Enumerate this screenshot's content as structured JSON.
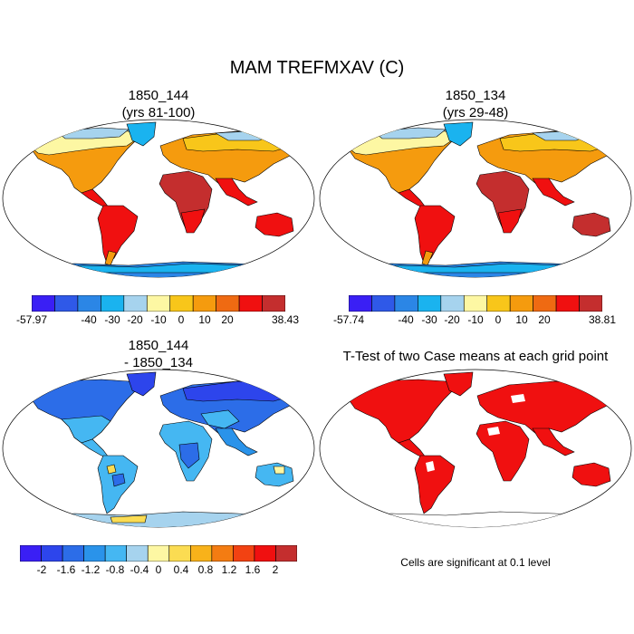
{
  "title": "MAM TREFMXAV (C)",
  "colors": {
    "abs_scale": [
      "#3a1ff5",
      "#2f59e8",
      "#2b86e6",
      "#1ab3ef",
      "#a6d3ee",
      "#fdf7a3",
      "#f8c61a",
      "#f59b0e",
      "#ef6a12",
      "#f01010",
      "#c42e2e"
    ],
    "diff_scale": [
      "#3a1ff5",
      "#2d45ec",
      "#2c6de8",
      "#2a93ea",
      "#45b7f2",
      "#a6d3ee",
      "#fdf7a3",
      "#fbdc52",
      "#f8b21a",
      "#f47c12",
      "#f24212",
      "#f01010",
      "#c42e2e"
    ],
    "ttest_fill": "#f01010",
    "ocean": "#ffffff",
    "land_outline": "#000000"
  },
  "panels": {
    "top_left": {
      "title_line1": "1850_144",
      "title_line2": "(yrs 81-100)",
      "colorbar_labels": [
        "-57.97",
        "-40",
        "-30",
        "-20",
        "-10",
        "0",
        "10",
        "20",
        "38.43"
      ]
    },
    "top_right": {
      "title_line1": "1850_134",
      "title_line2": "(yrs 29-48)",
      "colorbar_labels": [
        "-57.74",
        "-40",
        "-30",
        "-20",
        "-10",
        "0",
        "10",
        "20",
        "38.81"
      ]
    },
    "bottom_left": {
      "title_line1": "1850_144",
      "title_line2": "- 1850_134",
      "colorbar_labels": [
        "-2",
        "-1.6",
        "-1.2",
        "-0.8",
        "-0.4",
        "0",
        "0.4",
        "0.8",
        "1.2",
        "1.6",
        "2"
      ]
    },
    "bottom_right": {
      "title_line1": "T-Test of two Case means at each grid point",
      "note": "Cells are significant at 0.1 level"
    }
  }
}
